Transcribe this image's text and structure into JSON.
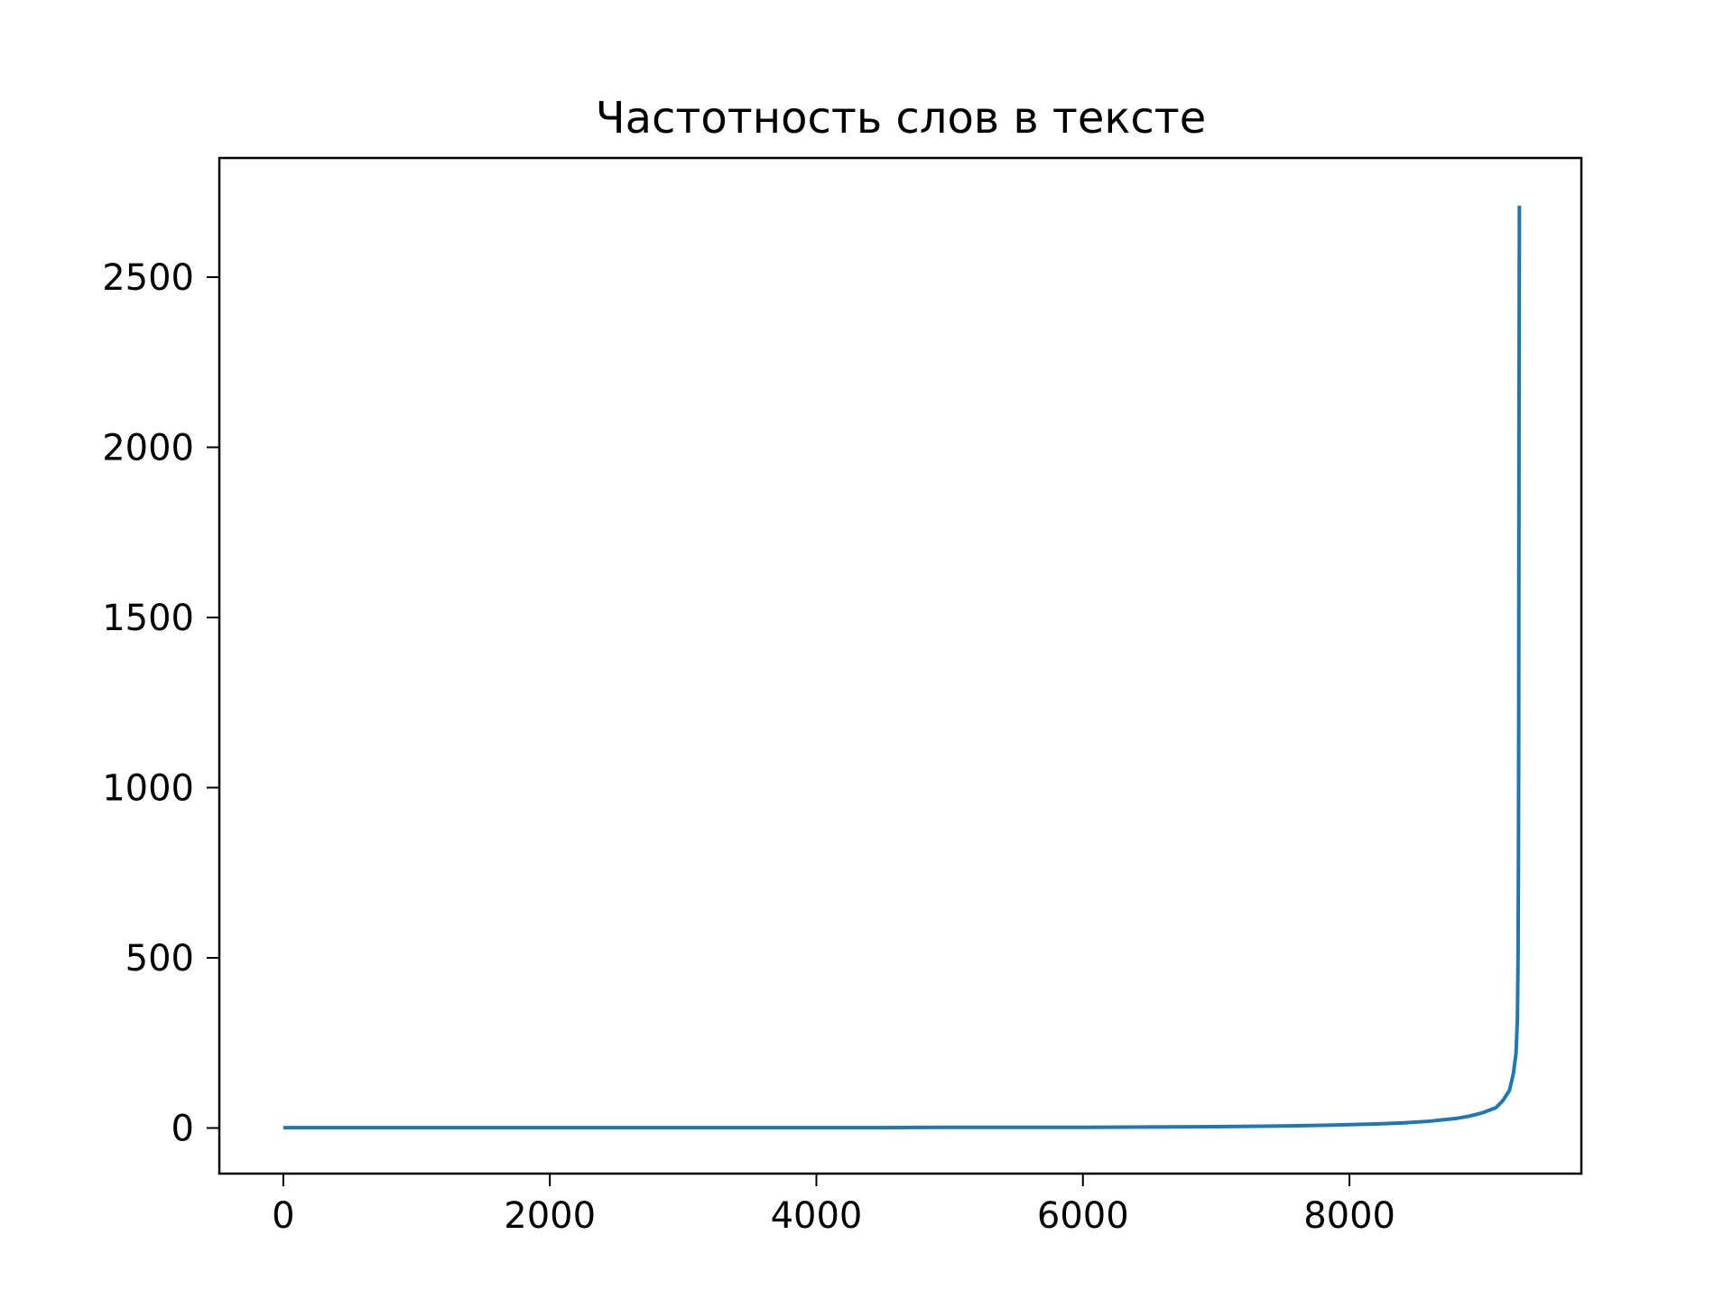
{
  "chart_data": {
    "type": "line",
    "title": "Частотность слов в тексте",
    "xlabel": "",
    "ylabel": "",
    "xlim": [
      -480,
      9740
    ],
    "ylim": [
      -134,
      2850
    ],
    "xticks": [
      0,
      2000,
      4000,
      6000,
      8000
    ],
    "xtick_labels": [
      "0",
      "2000",
      "4000",
      "6000",
      "8000"
    ],
    "yticks": [
      0,
      500,
      1000,
      1500,
      2000,
      2500
    ],
    "ytick_labels": [
      "0",
      "500",
      "1000",
      "1500",
      "2000",
      "2500"
    ],
    "grid": false,
    "legend": "none",
    "series": [
      {
        "color": "#1f77b4",
        "x": [
          0,
          1000,
          2000,
          3000,
          4000,
          4500,
          5000,
          5500,
          6000,
          6500,
          7000,
          7500,
          7800,
          8000,
          8200,
          8400,
          8600,
          8800,
          8900,
          9000,
          9100,
          9150,
          9200,
          9230,
          9250,
          9260,
          9265,
          9268,
          9270,
          9272,
          9275
        ],
        "y": [
          1,
          1,
          1,
          1,
          1,
          1,
          2,
          2,
          2,
          3,
          4,
          6,
          8,
          10,
          12,
          15,
          20,
          28,
          35,
          45,
          60,
          80,
          110,
          160,
          220,
          320,
          500,
          800,
          1200,
          2000,
          2710
        ]
      }
    ]
  }
}
